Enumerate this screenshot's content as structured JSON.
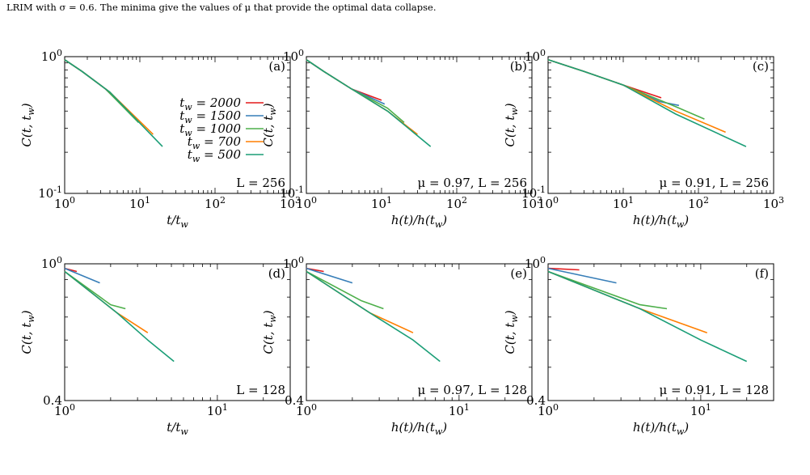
{
  "caption": "LRIM with σ = 0.6. The minima give the values of μ that provide the optimal data collapse.",
  "colors": {
    "tw2000": "#e41a1c",
    "tw1500": "#377eb8",
    "tw1000": "#4daf4a",
    "tw700": "#ff7f00",
    "tw500": "#1b9e77",
    "collapse": "#000000"
  },
  "legend": {
    "entries": [
      "t_w = 2000",
      "t_w = 1500",
      "t_w = 1000",
      "t_w = 700",
      "t_w = 500"
    ]
  },
  "chart_data": [
    {
      "panel": "(a)",
      "type": "line",
      "scale": "log-log",
      "xlabel": "t/t_w",
      "ylabel": "C(t, t_w)",
      "xlim": [
        1,
        1000
      ],
      "ylim": [
        0.1,
        1
      ],
      "annotation": "L = 256",
      "x_ticks": [
        "10^0",
        "10^1",
        "10^2",
        "10^3"
      ],
      "y_ticks": [
        "10^-1",
        "10^0"
      ],
      "series": [
        {
          "name": "t_w = 2000",
          "x": [
            1,
            1.7,
            3.5,
            8.5
          ],
          "y": [
            0.95,
            0.78,
            0.58,
            0.36
          ]
        },
        {
          "name": "t_w = 1500",
          "x": [
            1,
            1.7,
            3.5,
            9.5
          ],
          "y": [
            0.95,
            0.78,
            0.58,
            0.34
          ]
        },
        {
          "name": "t_w = 1000",
          "x": [
            1,
            1.7,
            3.5,
            9.6
          ],
          "y": [
            0.95,
            0.78,
            0.58,
            0.33
          ]
        },
        {
          "name": "t_w = 700",
          "x": [
            1,
            1.7,
            4,
            15
          ],
          "y": [
            0.95,
            0.78,
            0.55,
            0.27
          ]
        },
        {
          "name": "t_w = 500",
          "x": [
            1,
            1.7,
            4,
            20
          ],
          "y": [
            0.95,
            0.78,
            0.55,
            0.22
          ]
        }
      ]
    },
    {
      "panel": "(b)",
      "type": "line",
      "scale": "log-log",
      "xlabel": "h(t)/h(t_w)",
      "ylabel": "C(t, t_w)",
      "xlim": [
        1,
        1000
      ],
      "ylim": [
        0.1,
        1
      ],
      "annotation": "μ = 0.97, L = 256",
      "x_ticks": [
        "10^0",
        "10^1",
        "10^2",
        "10^3"
      ],
      "y_ticks": [
        "10^-1",
        "10^0"
      ],
      "series": [
        {
          "name": "t_w = 2000",
          "x": [
            1,
            1.7,
            4,
            10
          ],
          "y": [
            0.95,
            0.78,
            0.58,
            0.48
          ]
        },
        {
          "name": "t_w = 1500",
          "x": [
            1,
            1.7,
            4,
            11
          ],
          "y": [
            0.95,
            0.78,
            0.58,
            0.45
          ]
        },
        {
          "name": "t_w = 1000",
          "x": [
            1,
            1.7,
            4,
            12,
            20
          ],
          "y": [
            0.95,
            0.78,
            0.58,
            0.42,
            0.33
          ]
        },
        {
          "name": "t_w = 700",
          "x": [
            1,
            1.7,
            4,
            12,
            30
          ],
          "y": [
            0.95,
            0.78,
            0.58,
            0.4,
            0.27
          ]
        },
        {
          "name": "t_w = 500",
          "x": [
            1,
            1.7,
            4,
            12,
            45
          ],
          "y": [
            0.95,
            0.78,
            0.58,
            0.4,
            0.22
          ]
        }
      ]
    },
    {
      "panel": "(c)",
      "type": "line",
      "scale": "log-log",
      "xlabel": "h(t)/h(t_w)",
      "ylabel": "C(t, t_w)",
      "xlim": [
        1,
        1000
      ],
      "ylim": [
        0.1,
        1
      ],
      "annotation": "μ = 0.91, L = 256",
      "x_ticks": [
        "10^0",
        "10^1",
        "10^2",
        "10^3"
      ],
      "y_ticks": [
        "10^-1",
        "10^0"
      ],
      "series": [
        {
          "name": "t_w = 2000",
          "x": [
            1,
            3,
            10,
            32
          ],
          "y": [
            0.95,
            0.78,
            0.62,
            0.5
          ]
        },
        {
          "name": "t_w = 1500",
          "x": [
            1,
            3,
            10,
            30,
            55
          ],
          "y": [
            0.95,
            0.78,
            0.62,
            0.47,
            0.44
          ]
        },
        {
          "name": "t_w = 1000",
          "x": [
            1,
            3,
            10,
            50,
            120
          ],
          "y": [
            0.95,
            0.78,
            0.62,
            0.43,
            0.35
          ]
        },
        {
          "name": "t_w = 700",
          "x": [
            1,
            3,
            10,
            50,
            230
          ],
          "y": [
            0.95,
            0.78,
            0.62,
            0.4,
            0.28
          ]
        },
        {
          "name": "t_w = 500",
          "x": [
            1,
            3,
            10,
            50,
            430
          ],
          "y": [
            0.95,
            0.78,
            0.62,
            0.38,
            0.22
          ]
        }
      ]
    },
    {
      "panel": "(d)",
      "type": "line",
      "scale": "log-log",
      "xlabel": "t/t_w",
      "ylabel": "C(t, t_w)",
      "xlim": [
        1,
        30
      ],
      "ylim": [
        0.4,
        1
      ],
      "annotation": "L = 128",
      "x_ticks": [
        "10^0",
        "10^1"
      ],
      "y_ticks": [
        "0.4",
        "10^0"
      ],
      "series": [
        {
          "name": "t_w = 2000",
          "x": [
            1,
            1.2
          ],
          "y": [
            0.97,
            0.95
          ]
        },
        {
          "name": "t_w = 1500",
          "x": [
            1,
            1.7
          ],
          "y": [
            0.97,
            0.88
          ]
        },
        {
          "name": "t_w = 1000",
          "x": [
            1,
            2,
            2.5
          ],
          "y": [
            0.95,
            0.76,
            0.74
          ]
        },
        {
          "name": "t_w = 700",
          "x": [
            1,
            2.2,
            3.5
          ],
          "y": [
            0.95,
            0.72,
            0.63
          ]
        },
        {
          "name": "t_w = 500",
          "x": [
            1,
            2.2,
            3.5,
            5.2
          ],
          "y": [
            0.95,
            0.72,
            0.6,
            0.52
          ]
        }
      ]
    },
    {
      "panel": "(e)",
      "type": "line",
      "scale": "log-log",
      "xlabel": "h(t)/h(t_w)",
      "ylabel": "C(t, t_w)",
      "xlim": [
        1,
        30
      ],
      "ylim": [
        0.4,
        1
      ],
      "annotation": "μ = 0.97, L = 128",
      "x_ticks": [
        "10^0",
        "10^1"
      ],
      "y_ticks": [
        "0.4",
        "10^0"
      ],
      "series": [
        {
          "name": "t_w = 2000",
          "x": [
            1,
            1.3
          ],
          "y": [
            0.97,
            0.95
          ]
        },
        {
          "name": "t_w = 1500",
          "x": [
            1,
            2
          ],
          "y": [
            0.97,
            0.88
          ]
        },
        {
          "name": "t_w = 1000",
          "x": [
            1,
            2.3,
            3.2
          ],
          "y": [
            0.95,
            0.78,
            0.74
          ]
        },
        {
          "name": "t_w = 700",
          "x": [
            1,
            2.6,
            5
          ],
          "y": [
            0.95,
            0.72,
            0.63
          ]
        },
        {
          "name": "t_w = 500",
          "x": [
            1,
            2.6,
            5,
            7.5
          ],
          "y": [
            0.95,
            0.72,
            0.6,
            0.52
          ]
        }
      ]
    },
    {
      "panel": "(f)",
      "type": "line",
      "scale": "log-log",
      "xlabel": "h(t)/h(t_w)",
      "ylabel": "C(t, t_w)",
      "xlim": [
        1,
        30
      ],
      "ylim": [
        0.4,
        1
      ],
      "annotation": "μ = 0.91, L = 128",
      "x_ticks": [
        "10^0",
        "10^1"
      ],
      "y_ticks": [
        "0.4",
        "10^0"
      ],
      "series": [
        {
          "name": "t_w = 2000",
          "x": [
            1,
            1.6
          ],
          "y": [
            0.97,
            0.96
          ]
        },
        {
          "name": "t_w = 1500",
          "x": [
            1,
            2.8
          ],
          "y": [
            0.97,
            0.88
          ]
        },
        {
          "name": "t_w = 1000",
          "x": [
            1,
            4,
            6
          ],
          "y": [
            0.95,
            0.76,
            0.74
          ]
        },
        {
          "name": "t_w = 700",
          "x": [
            1,
            4,
            11
          ],
          "y": [
            0.95,
            0.74,
            0.63
          ]
        },
        {
          "name": "t_w = 500",
          "x": [
            1,
            4,
            10,
            20
          ],
          "y": [
            0.95,
            0.74,
            0.6,
            0.52
          ]
        }
      ]
    }
  ]
}
